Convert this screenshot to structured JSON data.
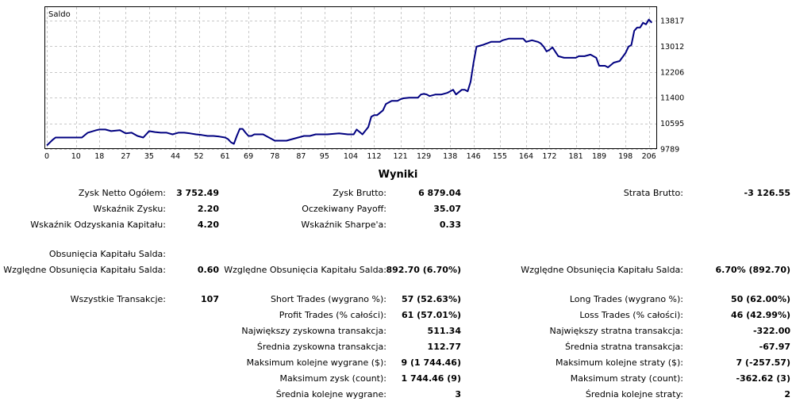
{
  "chart_data": {
    "type": "line",
    "title": "Saldo",
    "x_ticks": [
      0,
      10,
      18,
      27,
      35,
      44,
      52,
      61,
      69,
      78,
      87,
      95,
      104,
      112,
      121,
      129,
      138,
      146,
      155,
      164,
      172,
      181,
      189,
      198,
      206
    ],
    "y_ticks": [
      9789,
      10595,
      11400,
      12206,
      13012,
      13817
    ],
    "xlim": [
      0,
      208
    ],
    "ylim": [
      9789,
      14240
    ],
    "grid": true,
    "series": [
      {
        "name": "Saldo",
        "color": "#000080",
        "x": [
          0,
          2,
          3,
          5,
          8,
          12,
          14,
          17,
          18,
          20,
          22,
          25,
          27,
          29,
          31,
          33,
          35,
          37,
          39,
          41,
          43,
          45,
          47,
          49,
          51,
          53,
          55,
          57,
          59,
          61,
          62,
          63,
          64,
          65,
          66,
          67,
          68,
          69,
          70,
          71,
          73,
          74,
          76,
          78,
          80,
          82,
          84,
          86,
          88,
          90,
          92,
          94,
          96,
          100,
          103,
          105,
          106,
          108,
          110,
          111,
          112,
          113,
          115,
          116,
          118,
          120,
          121,
          122,
          124,
          126,
          127,
          128,
          129,
          130,
          131,
          133,
          135,
          137,
          139,
          140,
          142,
          143,
          144,
          145,
          146,
          147,
          149,
          152,
          153,
          155,
          156,
          158,
          160,
          163,
          164,
          166,
          168,
          169,
          170,
          171,
          172,
          173,
          175,
          177,
          179,
          180,
          181,
          182,
          184,
          186,
          188,
          189,
          191,
          192,
          194,
          196,
          198,
          199,
          200,
          201,
          202,
          203,
          204,
          205,
          206,
          207
        ],
        "y": [
          9900,
          10080,
          10150,
          10150,
          10150,
          10150,
          10300,
          10380,
          10400,
          10400,
          10350,
          10380,
          10280,
          10300,
          10200,
          10150,
          10350,
          10320,
          10300,
          10300,
          10250,
          10300,
          10300,
          10280,
          10250,
          10230,
          10200,
          10200,
          10180,
          10150,
          10100,
          10000,
          9950,
          10200,
          10420,
          10420,
          10300,
          10200,
          10200,
          10250,
          10250,
          10250,
          10150,
          10050,
          10050,
          10050,
          10100,
          10150,
          10200,
          10200,
          10250,
          10250,
          10250,
          10280,
          10250,
          10250,
          10400,
          10250,
          10480,
          10800,
          10850,
          10850,
          11000,
          11200,
          11300,
          11300,
          11350,
          11380,
          11400,
          11400,
          11400,
          11500,
          11520,
          11500,
          11450,
          11500,
          11500,
          11550,
          11650,
          11500,
          11650,
          11650,
          11600,
          11900,
          12500,
          13000,
          13050,
          13150,
          13150,
          13150,
          13200,
          13250,
          13250,
          13250,
          13150,
          13200,
          13150,
          13100,
          13000,
          12850,
          12900,
          12980,
          12700,
          12650,
          12650,
          12650,
          12650,
          12700,
          12700,
          12750,
          12650,
          12400,
          12400,
          12350,
          12500,
          12550,
          12800,
          13000,
          13050,
          13500,
          13600,
          13600,
          13750,
          13700,
          13850,
          13750
        ]
      }
    ]
  },
  "report": {
    "title": "Wyniki",
    "col1": [
      {
        "label": "Zysk Netto Ogółem:",
        "value": "3 752.49"
      },
      {
        "label": "Wskaźnik Zysku:",
        "value": "2.20"
      },
      {
        "label": "Wskaźnik Odzyskania Kapitału:",
        "value": "4.20"
      },
      {
        "label": "Obsunięcia Kapitału Salda:",
        "value": ""
      },
      {
        "label": "Względne Obsunięcia Kapitału Salda:",
        "value": "0.60"
      },
      {
        "label": "Wszystkie Transakcje:",
        "value": "107"
      }
    ],
    "col2": [
      {
        "label": "Zysk Brutto:",
        "value": "6 879.04"
      },
      {
        "label": "Oczekiwany Payoff:",
        "value": "35.07"
      },
      {
        "label": "Wskaźnik Sharpe'a:",
        "value": "0.33"
      },
      {
        "label": "Względne Obsunięcia Kapitału Salda:",
        "value": "892.70 (6.70%)"
      },
      {
        "label": "Short Trades (wygrano %):",
        "value": "57 (52.63%)"
      },
      {
        "label": "Profit Trades (% całości):",
        "value": "61 (57.01%)"
      },
      {
        "label": "Największy zyskowna transakcja:",
        "value": "511.34"
      },
      {
        "label": "Średnia zyskowna transakcja:",
        "value": "112.77"
      },
      {
        "label": "Maksimum kolejne wygrane ($):",
        "value": "9 (1 744.46)"
      },
      {
        "label": "Maksimum zysk (count):",
        "value": "1 744.46 (9)"
      },
      {
        "label": "Średnia kolejne wygrane:",
        "value": "3"
      }
    ],
    "col3": [
      {
        "label": "Strata Brutto:",
        "value": "-3 126.55"
      },
      {
        "label": "Względne Obsunięcia Kapitału Salda:",
        "value": "6.70% (892.70)"
      },
      {
        "label": "Long Trades (wygrano %):",
        "value": "50 (62.00%)"
      },
      {
        "label": "Loss Trades (% całości):",
        "value": "46 (42.99%)"
      },
      {
        "label": "Największy stratna transakcja:",
        "value": "-322.00"
      },
      {
        "label": "Średnia stratna transakcja:",
        "value": "-67.97"
      },
      {
        "label": "Maksimum kolejne straty ($):",
        "value": "7 (-257.57)"
      },
      {
        "label": "Maksimum straty (count):",
        "value": "-362.62 (3)"
      },
      {
        "label": "Średnia kolejne straty:",
        "value": "2"
      }
    ]
  }
}
